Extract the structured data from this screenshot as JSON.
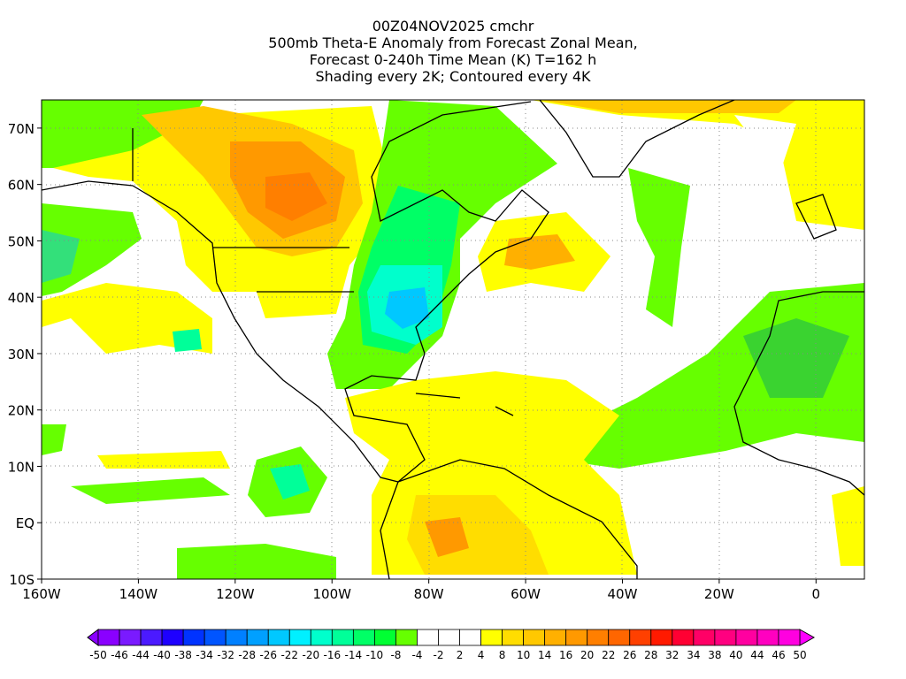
{
  "titles": {
    "line1": "00Z04NOV2025 cmchr",
    "line2": "500mb Theta-E Anomaly from Forecast Zonal Mean,",
    "line3": "Forecast 0-240h Time Mean (K) T=162 h",
    "line4": "Shading every 2K; Contoured every 4K"
  },
  "map": {
    "lon_range": [
      -160,
      10
    ],
    "lat_range": [
      -10,
      75
    ],
    "lon_ticks": [
      {
        "value": -160,
        "label": "160W"
      },
      {
        "value": -140,
        "label": "140W"
      },
      {
        "value": -120,
        "label": "120W"
      },
      {
        "value": -100,
        "label": "100W"
      },
      {
        "value": -80,
        "label": "80W"
      },
      {
        "value": -60,
        "label": "60W"
      },
      {
        "value": -40,
        "label": "40W"
      },
      {
        "value": -20,
        "label": "20W"
      },
      {
        "value": 0,
        "label": "0"
      }
    ],
    "lat_ticks": [
      {
        "value": 70,
        "label": "70N"
      },
      {
        "value": 60,
        "label": "60N"
      },
      {
        "value": 50,
        "label": "50N"
      },
      {
        "value": 40,
        "label": "40N"
      },
      {
        "value": 30,
        "label": "30N"
      },
      {
        "value": 20,
        "label": "20N"
      },
      {
        "value": 10,
        "label": "10N"
      },
      {
        "value": 0,
        "label": "EQ"
      },
      {
        "value": -10,
        "label": "10S"
      }
    ]
  },
  "colorbar": {
    "labels": [
      "-50",
      "-46",
      "-44",
      "-40",
      "-38",
      "-34",
      "-32",
      "-28",
      "-26",
      "-22",
      "-20",
      "-16",
      "-14",
      "-10",
      "-8",
      "-4",
      "-2",
      "2",
      "4",
      "8",
      "10",
      "14",
      "16",
      "20",
      "22",
      "26",
      "28",
      "32",
      "34",
      "38",
      "40",
      "44",
      "46",
      "50"
    ],
    "colors": [
      "#8a00ff",
      "#7a1aff",
      "#4b1aff",
      "#1e00ff",
      "#0033ff",
      "#0055ff",
      "#0080ff",
      "#00a0ff",
      "#00c8ff",
      "#00f0ff",
      "#00ffcc",
      "#00ff99",
      "#00ff66",
      "#00ff33",
      "#66ff00",
      "#ffffff",
      "#ffffff",
      "#ffffff",
      "#ffff00",
      "#ffdd00",
      "#ffc800",
      "#ffb000",
      "#ff9900",
      "#ff7f00",
      "#ff6600",
      "#ff4000",
      "#ff1a00",
      "#ff0033",
      "#ff0066",
      "#ff0080",
      "#ff00a0",
      "#ff00c0",
      "#ff00e0"
    ],
    "under_color": "#8a00ff",
    "over_color": "#ff00ff"
  }
}
